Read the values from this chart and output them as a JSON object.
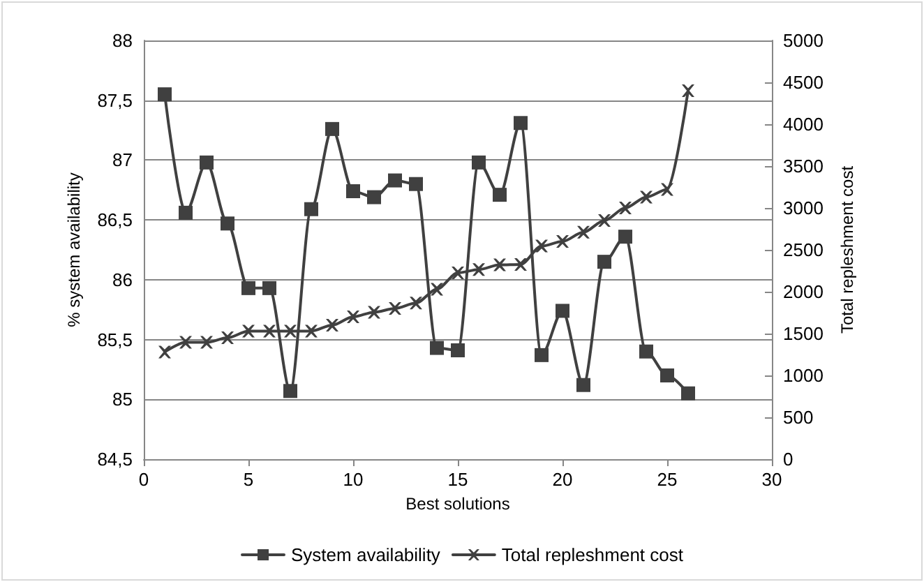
{
  "chart_data": {
    "type": "line",
    "x": [
      1,
      2,
      3,
      4,
      5,
      6,
      7,
      8,
      9,
      10,
      11,
      12,
      13,
      14,
      15,
      16,
      17,
      18,
      19,
      20,
      21,
      22,
      23,
      24,
      25,
      26
    ],
    "xlabel": "Best solutions",
    "ylabel": "% system availability",
    "y2label": "Total repleshment cost",
    "series": [
      {
        "name": "System availability",
        "color": "#404040",
        "marker": "square",
        "values": [
          87.55,
          86.56,
          86.98,
          86.47,
          85.93,
          85.93,
          85.07,
          86.59,
          87.26,
          86.74,
          86.69,
          86.83,
          86.8,
          85.43,
          85.41,
          86.98,
          86.71,
          87.31,
          85.37,
          85.74,
          85.12,
          86.15,
          86.36,
          85.4,
          85.2,
          85.05
        ]
      },
      {
        "name": "Total repleshment cost",
        "color": "#404040",
        "marker": "cross",
        "axis": "y2",
        "values": [
          1280,
          1395,
          1395,
          1450,
          1530,
          1530,
          1530,
          1530,
          1600,
          1700,
          1755,
          1800,
          1865,
          2030,
          2225,
          2265,
          2320,
          2325,
          2545,
          2600,
          2710,
          2850,
          3000,
          3130,
          3220,
          4400
        ]
      }
    ],
    "xlim": [
      0,
      30
    ],
    "xticks": [
      0,
      5,
      10,
      15,
      20,
      25,
      30
    ],
    "ylim": [
      84.5,
      88
    ],
    "yticks": [
      {
        "value": 84.5,
        "label": "84,5"
      },
      85,
      {
        "value": 85.5,
        "label": "85,5"
      },
      86,
      {
        "value": 86.5,
        "label": "86,5"
      },
      87,
      {
        "value": 87.5,
        "label": "87,5"
      },
      88
    ],
    "y2lim": [
      0,
      5000
    ],
    "y2ticks": [
      0,
      500,
      1000,
      1500,
      2000,
      2500,
      3000,
      3500,
      4000,
      4500,
      5000
    ],
    "grid": "y",
    "legend": "bottom",
    "line_style": "solid"
  }
}
